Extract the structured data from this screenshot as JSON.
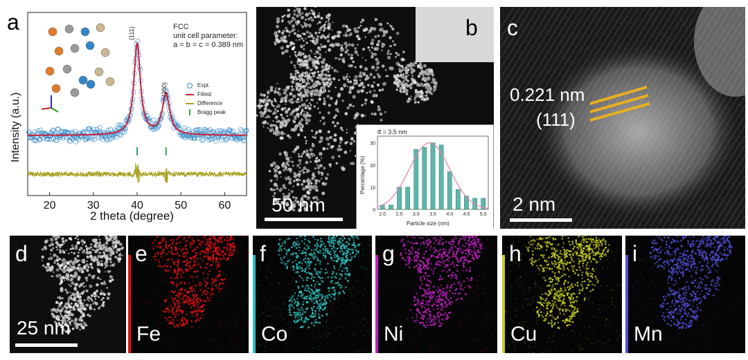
{
  "panel_a": {
    "label": "a",
    "annotation_title": "FCC",
    "annotation_line2": "unit cell parameter:",
    "annotation_line3": "a = b = c = 0.389 nm",
    "peak_111": "(111)",
    "peak_200": "(200)",
    "legend": [
      {
        "label": "Expt.",
        "color": "#2f86c8",
        "marker": "circle"
      },
      {
        "label": "Fitted",
        "color": "#c8203a",
        "marker": "line"
      },
      {
        "label": "Difference",
        "color": "#a8a020",
        "marker": "line"
      },
      {
        "label": "Bragg peak",
        "color": "#2fa84a",
        "marker": "tick"
      }
    ],
    "chart_data": {
      "type": "line",
      "xlabel": "2 theta (degree)",
      "ylabel": "Intensity (a.u.)",
      "xlim": [
        15,
        65
      ],
      "x_ticks": [
        "20",
        "30",
        "40",
        "50",
        "60"
      ],
      "bragg_peaks": [
        40.0,
        46.6
      ],
      "peaks": [
        {
          "position": 40.0,
          "hkl": "(111)"
        },
        {
          "position": 46.6,
          "hkl": "(200)"
        }
      ],
      "colors": {
        "expt": "#2f86c8",
        "fitted": "#c8203a",
        "difference": "#a8a020",
        "bragg": "#2fa84a"
      }
    }
  },
  "panel_b": {
    "label": "b",
    "scale_bar": "50 nm",
    "inset": {
      "annotation": "d̄ = 3.5 nm",
      "chart_data": {
        "type": "bar",
        "xlabel": "Particle size (nm)",
        "ylabel": "Percentage (%)",
        "x_ticks": [
          "2.0",
          "2.5",
          "3.0",
          "3.5",
          "4.0",
          "4.5",
          "5.0"
        ],
        "y_ticks": [
          "0",
          "10",
          "20",
          "30"
        ],
        "ylim": [
          0,
          33
        ],
        "categories": [
          2.0,
          2.25,
          2.5,
          2.75,
          3.0,
          3.25,
          3.5,
          3.75,
          4.0,
          4.25,
          4.5,
          4.75,
          5.0
        ],
        "values": [
          2,
          2,
          10,
          10,
          27,
          28,
          30,
          29,
          17,
          9,
          6,
          5,
          5
        ],
        "fit": "gaussian",
        "colors": {
          "bar": "#5fb5a9",
          "fit": "#e48aa8"
        }
      }
    }
  },
  "panel_c": {
    "label": "c",
    "d_spacing": "0.221 nm",
    "plane": "(111)",
    "scale_bar": "2 nm",
    "line_color": "#e8b020"
  },
  "eds": {
    "panel_d": {
      "label": "d",
      "scale_bar": "25 nm"
    },
    "maps": [
      {
        "label": "e",
        "element": "Fe",
        "color": "#e01010"
      },
      {
        "label": "f",
        "element": "Co",
        "color": "#30c0c0"
      },
      {
        "label": "g",
        "element": "Ni",
        "color": "#c020c0"
      },
      {
        "label": "h",
        "element": "Cu",
        "color": "#c8d020"
      },
      {
        "label": "i",
        "element": "Mn",
        "color": "#5050d8"
      }
    ]
  }
}
